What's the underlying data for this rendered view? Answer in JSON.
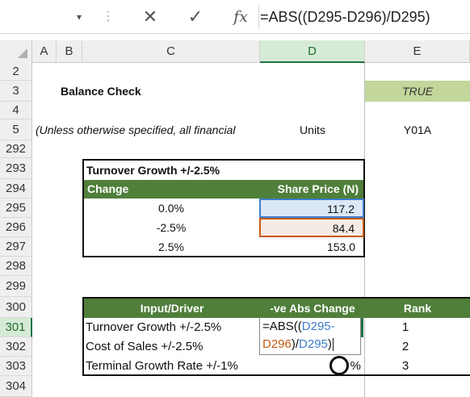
{
  "formula_bar": {
    "dropdown_icon": "chevron-down-icon",
    "cancel_icon": "close-icon",
    "enter_icon": "check-icon",
    "fx_label": "fx",
    "formula": "=ABS((D295-D296)/D295)"
  },
  "columns": [
    "A",
    "B",
    "C",
    "D",
    "E"
  ],
  "rows": [
    "2",
    "3",
    "4",
    "5",
    "292",
    "293",
    "294",
    "295",
    "296",
    "297",
    "298",
    "299",
    "300",
    "301",
    "302",
    "303",
    "304"
  ],
  "cells": {
    "balance_check_label": "Balance Check",
    "balance_check_value": "TRUE",
    "note_text": "(Unless otherwise specified, all financial",
    "units_label": "Units",
    "y01a_label": "Y01A"
  },
  "table1": {
    "title": "Turnover Growth +/-2.5%",
    "headers": [
      "Change",
      "Share Price (N)"
    ],
    "rows": [
      {
        "change": "0.0%",
        "price": "117.2"
      },
      {
        "change": "-2.5%",
        "price": "84.4"
      },
      {
        "change": "2.5%",
        "price": "153.0"
      }
    ]
  },
  "table2": {
    "headers": [
      "Input/Driver",
      "-ve Abs Change",
      "Rank"
    ],
    "rows": [
      {
        "driver": "Turnover Growth +/-2.5%",
        "rank": "1"
      },
      {
        "driver": "Cost of Sales +/-2.5%",
        "rank": "2"
      },
      {
        "driver": "Terminal Growth Rate +/-1%",
        "rank": "3"
      }
    ],
    "edit_line1_a": "=ABS((",
    "edit_line1_b": "D295-",
    "edit_line2_a": "D296",
    "edit_line2_b": ")/",
    "edit_line2_c": "D295",
    "edit_line2_d": ")",
    "row303_pct": "%"
  },
  "colors": {
    "green_header": "#4f7f3a",
    "true_cell": "#c3d69b",
    "blue_ref": "#3e7ec9",
    "orange_ref": "#c55a11"
  }
}
